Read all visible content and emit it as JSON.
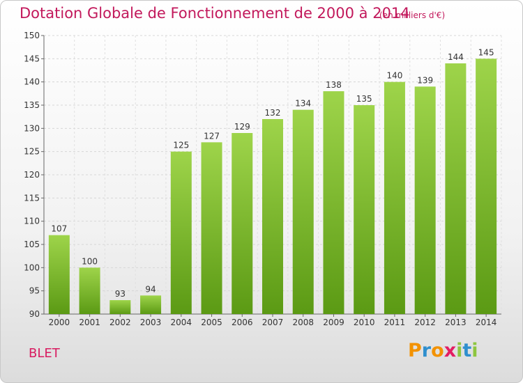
{
  "chart_data": {
    "type": "bar",
    "title": "Dotation Globale de Fonctionnement de 2000 à 2014",
    "unit": "(en milliers d'€)",
    "categories": [
      "2000",
      "2001",
      "2002",
      "2003",
      "2004",
      "2005",
      "2006",
      "2007",
      "2008",
      "2009",
      "2010",
      "2011",
      "2012",
      "2013",
      "2014"
    ],
    "values": [
      107,
      100,
      93,
      94,
      125,
      127,
      129,
      132,
      134,
      138,
      135,
      140,
      139,
      144,
      145
    ],
    "ylim": [
      90,
      150
    ],
    "yticks": [
      90,
      95,
      100,
      105,
      110,
      115,
      120,
      125,
      130,
      135,
      140,
      145,
      150
    ],
    "grid": true,
    "bar_color_top": "#9ed44a",
    "bar_color_bottom": "#5b9a14"
  },
  "footer": {
    "place": "BLET",
    "logo": {
      "letters": [
        "P",
        "r",
        "o",
        "x",
        "i",
        "t",
        "i"
      ],
      "colors": [
        "#f39200",
        "#2f8fce",
        "#f39200",
        "#e31e63",
        "#8dc63f",
        "#2f8fce",
        "#8dc63f"
      ]
    }
  }
}
